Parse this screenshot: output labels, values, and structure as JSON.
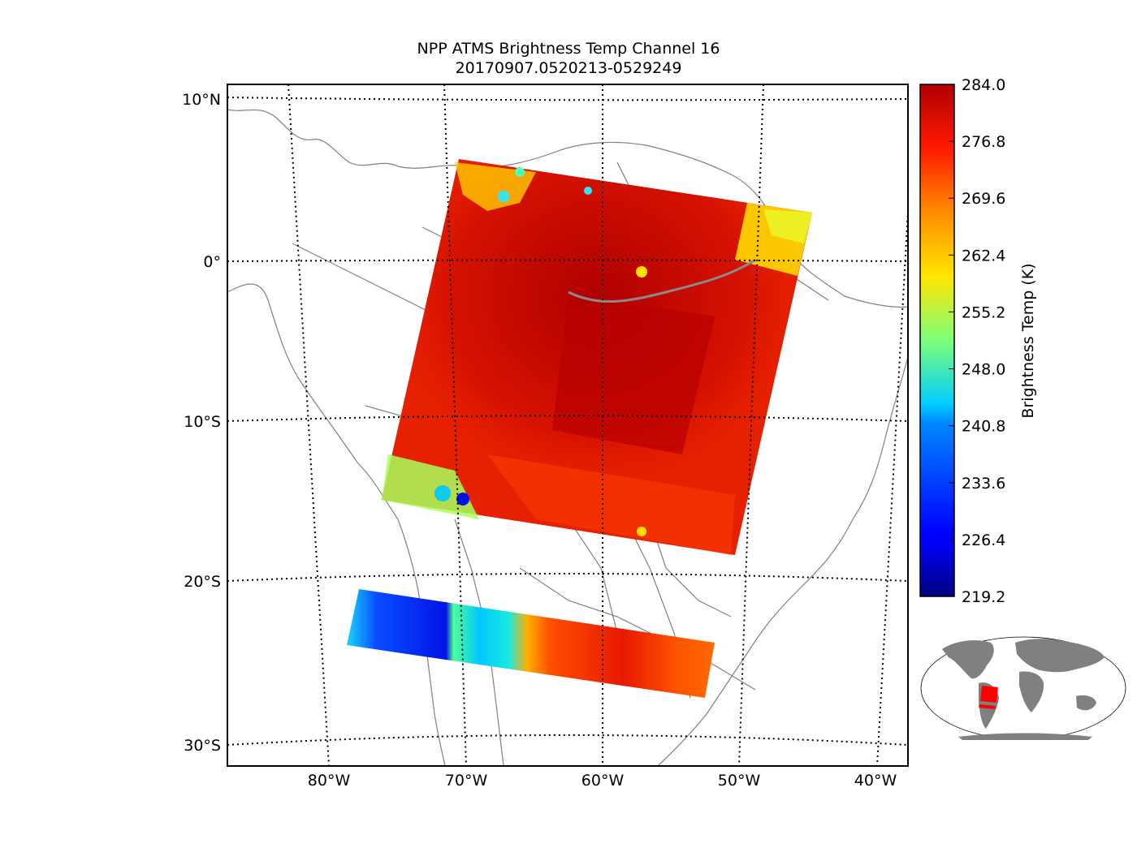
{
  "title": {
    "line1": "NPP ATMS Brightness Temp Channel 16",
    "line2": "20170907.0520213-0529249"
  },
  "map": {
    "lat_labels": [
      "10°N",
      "0°",
      "10°S",
      "20°S",
      "30°S"
    ],
    "lon_labels": [
      "80°W",
      "70°W",
      "60°W",
      "50°W",
      "40°W"
    ],
    "graticule_style": "dotted",
    "coastline_color": "#808080",
    "swaths": [
      {
        "name": "main-swath",
        "dominant": "red/dark-red",
        "edges": "yellow/cyan near Andes and Atlantic coast"
      },
      {
        "name": "southern-swath",
        "dominant": "blue west, red east"
      }
    ]
  },
  "colorbar": {
    "label": "Brightness Temp (K)",
    "ticks": [
      "284.0",
      "276.8",
      "269.6",
      "262.4",
      "255.2",
      "248.0",
      "240.8",
      "233.6",
      "226.4",
      "219.2"
    ],
    "vmin": 219.2,
    "vmax": 284.0,
    "colormap": "jet"
  },
  "inset": {
    "description": "world-locator-map",
    "land_color": "#808080",
    "highlight_color": "#ff0000"
  }
}
